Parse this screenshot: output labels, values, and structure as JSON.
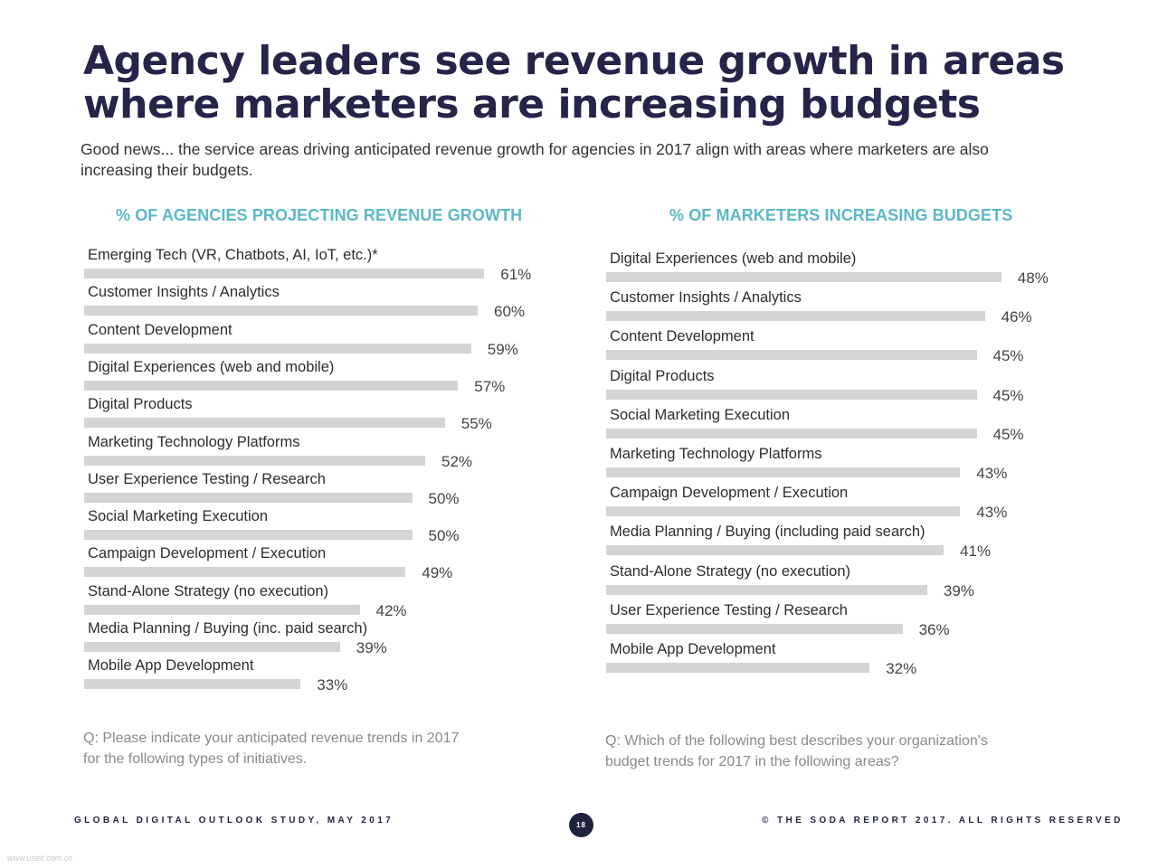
{
  "title_line1": "Agency leaders see revenue growth in areas",
  "title_line2": "where marketers are increasing budgets",
  "subtitle": "Good news... the service areas driving anticipated revenue growth for agencies in 2017 align with areas where marketers are also increasing their budgets.",
  "colors": {
    "title": "#25254a",
    "chart_title": "#5bb8c5",
    "bar": "#d4d4d4",
    "footer": "#1f2340",
    "question": "#8a8a8a"
  },
  "chart_data": [
    {
      "type": "bar",
      "orientation": "horizontal",
      "title": "% OF AGENCIES PROJECTING REVENUE GROWTH",
      "categories": [
        "Emerging Tech (VR, Chatbots, AI, IoT, etc.)*",
        "Customer Insights / Analytics",
        "Content Development",
        "Digital Experiences (web and mobile)",
        "Digital Products",
        "Marketing Technology Platforms",
        "User Experience Testing / Research",
        "Social Marketing Execution",
        "Campaign Development / Execution",
        "Stand-Alone Strategy (no execution)",
        "Media Planning / Buying (inc. paid search)",
        "Mobile App Development"
      ],
      "values": [
        61,
        60,
        59,
        57,
        55,
        52,
        50,
        50,
        49,
        42,
        39,
        33
      ],
      "value_labels": [
        "61%",
        "60%",
        "59%",
        "57%",
        "55%",
        "52%",
        "50%",
        "50%",
        "49%",
        "42%",
        "39%",
        "33%"
      ],
      "unit": "%",
      "grid": false,
      "question": "Q: Please indicate your anticipated revenue trends in 2017 for the following types of initiatives."
    },
    {
      "type": "bar",
      "orientation": "horizontal",
      "title": "% OF MARKETERS INCREASING BUDGETS",
      "categories": [
        "Digital Experiences (web and mobile)",
        "Customer Insights / Analytics",
        "Content Development",
        "Digital Products",
        "Social Marketing Execution",
        "Marketing Technology Platforms",
        "Campaign Development / Execution",
        "Media Planning / Buying (including paid search)",
        "Stand-Alone Strategy (no execution)",
        "User Experience Testing / Research",
        "Mobile App Development"
      ],
      "values": [
        48,
        46,
        45,
        45,
        45,
        43,
        43,
        41,
        39,
        36,
        32
      ],
      "value_labels": [
        "48%",
        "46%",
        "45%",
        "45%",
        "45%",
        "43%",
        "43%",
        "41%",
        "39%",
        "36%",
        "32%"
      ],
      "unit": "%",
      "grid": false,
      "question": "Q: Which of the following best describes your organization's budget trends for 2017 in the following areas?"
    }
  ],
  "footer": {
    "left": "GLOBAL DIGITAL OUTLOOK STUDY, MAY 2017",
    "page_number": "18",
    "right": "© THE SODA REPORT 2017. ALL RIGHTS RESERVED"
  },
  "watermark": "www.useit.com.cn"
}
